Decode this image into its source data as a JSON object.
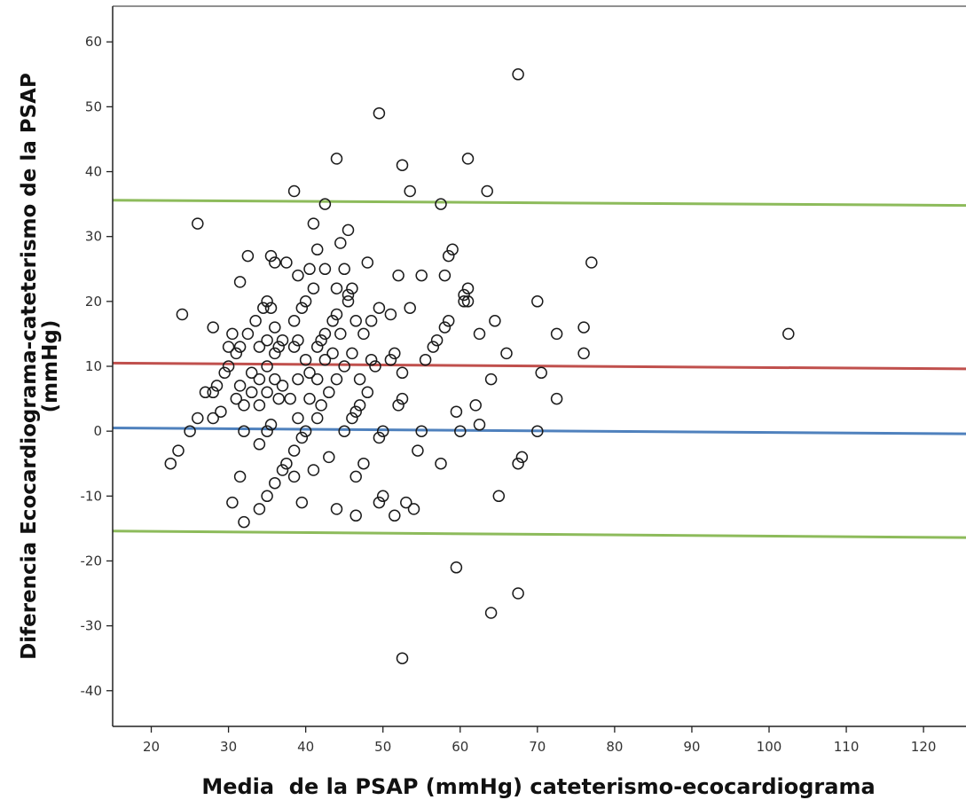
{
  "chart_data": {
    "type": "scatter",
    "title": "",
    "xlabel": "Media  de la PSAP (mmHg) cateterismo-ecocardiograma",
    "ylabel_line1": "Diferencia Ecocardiograma-cateterismo de la PSAP",
    "ylabel_line2": "(mmHg)",
    "xlim": [
      15,
      125.5
    ],
    "ylim": [
      -45.5,
      65.5
    ],
    "x_ticks": [
      20,
      30,
      40,
      50,
      60,
      70,
      80,
      90,
      100,
      110,
      120
    ],
    "x_tick_labels": [
      "20",
      "30",
      "40",
      "50",
      "60",
      "70",
      "80",
      "90",
      "100",
      "110",
      "120"
    ],
    "y_ticks": [
      -40,
      -30,
      -20,
      -10,
      0,
      10,
      20,
      30,
      40,
      50,
      60
    ],
    "y_tick_labels": [
      "-40",
      "-30",
      "-20",
      "-10",
      "0",
      "10",
      "20",
      "30",
      "40",
      "50",
      "60"
    ],
    "grid": false,
    "marker": "open-circle",
    "reference_lines": [
      {
        "role": "upper-limit",
        "color": "#8dbb5b",
        "y_start": 35.6,
        "y_end": 34.8
      },
      {
        "role": "mean-difference",
        "color": "#c0504d",
        "y_start": 10.5,
        "y_end": 9.6
      },
      {
        "role": "zero-difference",
        "color": "#4f81bd",
        "y_start": 0.5,
        "y_end": -0.4
      },
      {
        "role": "lower-limit",
        "color": "#8dbb5b",
        "y_start": -15.4,
        "y_end": -16.4
      }
    ],
    "points": [
      [
        22.5,
        -5
      ],
      [
        23.5,
        -3
      ],
      [
        24,
        18
      ],
      [
        25,
        0
      ],
      [
        26,
        2
      ],
      [
        26,
        32
      ],
      [
        27,
        6
      ],
      [
        28,
        6
      ],
      [
        28,
        16
      ],
      [
        28,
        2
      ],
      [
        28.5,
        7
      ],
      [
        29,
        3
      ],
      [
        29.5,
        9
      ],
      [
        30,
        13
      ],
      [
        30,
        10
      ],
      [
        30.5,
        15
      ],
      [
        30.5,
        -11
      ],
      [
        31,
        12
      ],
      [
        31,
        5
      ],
      [
        31.5,
        23
      ],
      [
        31.5,
        13
      ],
      [
        31.5,
        7
      ],
      [
        32,
        4
      ],
      [
        32,
        0
      ],
      [
        32,
        -14
      ],
      [
        31.5,
        -7
      ],
      [
        32.5,
        27
      ],
      [
        32.5,
        15
      ],
      [
        33,
        9
      ],
      [
        33,
        6
      ],
      [
        33.5,
        17
      ],
      [
        34,
        13
      ],
      [
        34,
        8
      ],
      [
        34,
        4
      ],
      [
        34,
        -2
      ],
      [
        34,
        -12
      ],
      [
        34.5,
        19
      ],
      [
        35,
        20
      ],
      [
        35,
        14
      ],
      [
        35,
        10
      ],
      [
        35,
        6
      ],
      [
        35,
        0
      ],
      [
        35,
        -10
      ],
      [
        35.5,
        27
      ],
      [
        35.5,
        19
      ],
      [
        35.5,
        1
      ],
      [
        36,
        26
      ],
      [
        36,
        16
      ],
      [
        36,
        12
      ],
      [
        36,
        8
      ],
      [
        36,
        -8
      ],
      [
        36.5,
        13
      ],
      [
        36.5,
        5
      ],
      [
        37,
        14
      ],
      [
        37,
        7
      ],
      [
        37,
        -6
      ],
      [
        37.5,
        26
      ],
      [
        37.5,
        -5
      ],
      [
        38,
        5
      ],
      [
        38.5,
        37
      ],
      [
        38.5,
        17
      ],
      [
        38.5,
        13
      ],
      [
        38.5,
        -3
      ],
      [
        38.5,
        -7
      ],
      [
        39,
        24
      ],
      [
        39,
        14
      ],
      [
        39,
        8
      ],
      [
        39,
        2
      ],
      [
        39.5,
        19
      ],
      [
        39.5,
        -1
      ],
      [
        39.5,
        -11
      ],
      [
        40,
        20
      ],
      [
        40,
        11
      ],
      [
        40,
        0
      ],
      [
        40.5,
        25
      ],
      [
        40.5,
        9
      ],
      [
        40.5,
        5
      ],
      [
        41,
        32
      ],
      [
        41,
        22
      ],
      [
        41,
        -6
      ],
      [
        41.5,
        28
      ],
      [
        41.5,
        13
      ],
      [
        41.5,
        8
      ],
      [
        41.5,
        2
      ],
      [
        42,
        14
      ],
      [
        42,
        4
      ],
      [
        42.5,
        35
      ],
      [
        42.5,
        25
      ],
      [
        42.5,
        15
      ],
      [
        42.5,
        11
      ],
      [
        43,
        6
      ],
      [
        43,
        -4
      ],
      [
        43.5,
        17
      ],
      [
        43.5,
        12
      ],
      [
        44,
        42
      ],
      [
        44,
        22
      ],
      [
        44,
        18
      ],
      [
        44,
        8
      ],
      [
        44,
        -12
      ],
      [
        44.5,
        29
      ],
      [
        44.5,
        15
      ],
      [
        45,
        25
      ],
      [
        45,
        10
      ],
      [
        45,
        0
      ],
      [
        45.5,
        31
      ],
      [
        45.5,
        21
      ],
      [
        45.5,
        20
      ],
      [
        46,
        22
      ],
      [
        46,
        12
      ],
      [
        46,
        2
      ],
      [
        46.5,
        17
      ],
      [
        46.5,
        3
      ],
      [
        46.5,
        -7
      ],
      [
        46.5,
        -13
      ],
      [
        47,
        8
      ],
      [
        47,
        4
      ],
      [
        47.5,
        15
      ],
      [
        47.5,
        -5
      ],
      [
        48,
        26
      ],
      [
        48,
        6
      ],
      [
        48.5,
        17
      ],
      [
        48.5,
        11
      ],
      [
        49,
        10
      ],
      [
        49.5,
        19
      ],
      [
        49.5,
        -1
      ],
      [
        49.5,
        -11
      ],
      [
        49.5,
        49
      ],
      [
        50,
        0
      ],
      [
        50,
        -10
      ],
      [
        51,
        11
      ],
      [
        51,
        18
      ],
      [
        51.5,
        12
      ],
      [
        51.5,
        -13
      ],
      [
        52,
        24
      ],
      [
        52,
        4
      ],
      [
        52.5,
        5
      ],
      [
        52.5,
        9
      ],
      [
        52.5,
        41
      ],
      [
        52.5,
        -35
      ],
      [
        53,
        -11
      ],
      [
        53.5,
        19
      ],
      [
        53.5,
        37
      ],
      [
        54,
        -12
      ],
      [
        54.5,
        -3
      ],
      [
        55,
        24
      ],
      [
        55,
        0
      ],
      [
        55.5,
        11
      ],
      [
        56.5,
        13
      ],
      [
        57,
        14
      ],
      [
        57.5,
        35
      ],
      [
        57.5,
        -5
      ],
      [
        58,
        16
      ],
      [
        58,
        24
      ],
      [
        58.5,
        27
      ],
      [
        58.5,
        17
      ],
      [
        59,
        28
      ],
      [
        59.5,
        3
      ],
      [
        59.5,
        -21
      ],
      [
        60,
        0
      ],
      [
        60.5,
        20
      ],
      [
        60.5,
        21
      ],
      [
        61,
        20
      ],
      [
        61,
        22
      ],
      [
        61,
        42
      ],
      [
        62,
        4
      ],
      [
        62.5,
        15
      ],
      [
        62.5,
        1
      ],
      [
        63.5,
        37
      ],
      [
        64,
        8
      ],
      [
        64,
        -28
      ],
      [
        64.5,
        17
      ],
      [
        65,
        -10
      ],
      [
        66,
        12
      ],
      [
        67.5,
        55
      ],
      [
        67.5,
        -5
      ],
      [
        67.5,
        -25
      ],
      [
        68,
        -4
      ],
      [
        70,
        20
      ],
      [
        70,
        0
      ],
      [
        70.5,
        9
      ],
      [
        72.5,
        15
      ],
      [
        72.5,
        5
      ],
      [
        76,
        16
      ],
      [
        76,
        12
      ],
      [
        77,
        26
      ],
      [
        102.5,
        15
      ]
    ]
  }
}
